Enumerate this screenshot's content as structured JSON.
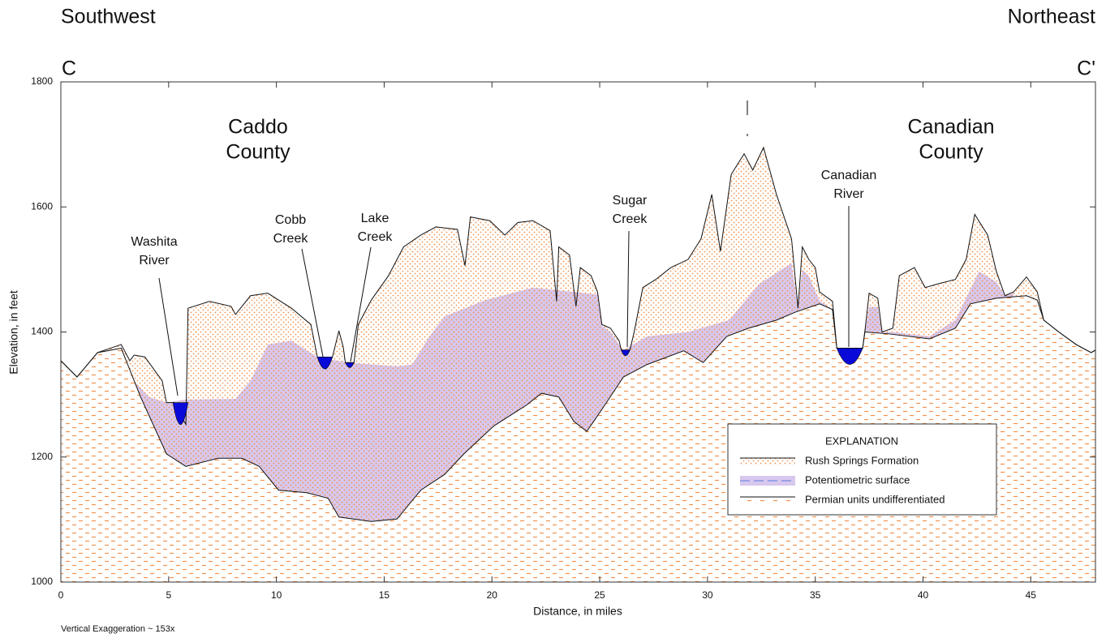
{
  "chart_data": {
    "type": "profile",
    "top_left": "Southwest",
    "top_right": "Northeast",
    "section_start": "C",
    "section_end": "C'",
    "xlabel": "Distance, in miles",
    "ylabel": "Elevation, in feet",
    "note": "Vertical Exaggeration ~ 153x",
    "xlim": [
      0,
      48
    ],
    "ylim": [
      1000,
      1800
    ],
    "xticks": [
      0,
      5,
      10,
      15,
      20,
      25,
      30,
      35,
      40,
      45
    ],
    "yticks": [
      1000,
      1200,
      1400,
      1600,
      1800
    ],
    "legend": "lower right",
    "legend_title": "EXPLANATION",
    "water_color": "#0a0ad8",
    "series": [
      {
        "name": "Rush Springs Formation",
        "color": "#f0924e",
        "x": [
          0,
          0.75,
          1.7,
          2.8,
          3.2,
          3.4,
          3.9,
          4.7,
          4.9,
          5.25,
          5.8,
          5.9,
          6.9,
          7.9,
          8.1,
          8.8,
          9.6,
          10.7,
          11.6,
          11.9,
          12.3,
          12.6,
          12.9,
          13.1,
          13.2,
          13.6,
          13.8,
          14.4,
          15.2,
          15.9,
          16.7,
          17.4,
          18.4,
          18.75,
          19.0,
          19.9,
          20.6,
          21.2,
          21.9,
          22.7,
          23.0,
          23.1,
          23.6,
          23.9,
          24.1,
          24.6,
          24.9,
          25.1,
          25.5,
          25.9,
          26.0,
          26.4,
          26.6,
          27.0,
          27.6,
          28.3,
          29.1,
          29.7,
          30.2,
          30.6,
          31.1,
          31.7,
          32.1,
          32.6,
          33.2,
          33.9,
          34.2,
          34.4,
          34.7,
          35.0,
          35.2,
          35.8,
          36.0,
          37.2,
          37.3,
          37.5,
          37.9,
          38.1,
          38.6,
          38.9,
          39.6,
          40.1,
          40.7,
          41.5,
          42.0,
          42.4,
          43.0,
          43.4,
          43.8,
          44.2,
          44.8,
          45.3,
          45.6,
          46.3,
          47.1,
          47.8,
          48
        ],
        "values": [
          1354,
          1328,
          1367,
          1380,
          1354,
          1363,
          1360,
          1322,
          1287,
          1287,
          1252,
          1438,
          1449,
          1441,
          1428,
          1458,
          1462,
          1438,
          1412,
          1360,
          1341,
          1360,
          1402,
          1376,
          1351,
          1351,
          1412,
          1451,
          1490,
          1536,
          1555,
          1568,
          1564,
          1506,
          1584,
          1578,
          1555,
          1575,
          1578,
          1562,
          1449,
          1536,
          1523,
          1441,
          1503,
          1490,
          1464,
          1412,
          1406,
          1386,
          1371,
          1371,
          1400,
          1471,
          1484,
          1503,
          1516,
          1549,
          1620,
          1529,
          1652,
          1685,
          1659,
          1695,
          1620,
          1549,
          1438,
          1536,
          1516,
          1503,
          1464,
          1449,
          1374,
          1374,
          1400,
          1462,
          1454,
          1400,
          1406,
          1490,
          1503,
          1471,
          1477,
          1484,
          1516,
          1588,
          1555,
          1497,
          1458,
          1464,
          1488,
          1464,
          1419,
          1400,
          1380,
          1367,
          1371
        ]
      },
      {
        "name": "Potentiometric surface",
        "color": "#d7c8ee",
        "x": [
          2.8,
          3.2,
          4.1,
          4.9,
          5.8,
          8.1,
          8.8,
          9.6,
          10.7,
          11.9,
          13.3,
          15.6,
          16.3,
          17.1,
          17.8,
          19.7,
          21.9,
          24.9,
          25.1,
          25.5,
          25.9,
          26.1,
          27.2,
          29.1,
          31.0,
          32.4,
          33.9,
          34.2,
          34.4,
          34.7,
          35.2,
          35.8,
          36.0,
          37.2,
          37.3,
          37.5,
          37.9,
          38.1,
          38.6,
          40.3,
          41.5,
          42.6,
          43.4,
          43.8,
          44.2
        ],
        "values": [
          1380,
          1328,
          1296,
          1287,
          1292,
          1293,
          1322,
          1380,
          1386,
          1360,
          1351,
          1345,
          1348,
          1393,
          1425,
          1451,
          1471,
          1460,
          1410,
          1400,
          1380,
          1371,
          1393,
          1400,
          1419,
          1477,
          1510,
          1438,
          1500,
          1490,
          1450,
          1436,
          1374,
          1374,
          1400,
          1440,
          1440,
          1400,
          1400,
          1393,
          1419,
          1497,
          1480,
          1458,
          1462
        ]
      },
      {
        "name": "Permian units undifferentiated",
        "color": "#f0924e",
        "x": [
          0,
          0.75,
          1.7,
          2.8,
          3.7,
          4.9,
          5.8,
          7.3,
          8.4,
          9.2,
          10.1,
          11.4,
          12.4,
          12.9,
          14.4,
          15.6,
          16.7,
          17.8,
          18.7,
          20.1,
          21.6,
          22.3,
          23.1,
          23.8,
          24.4,
          25.1,
          26.1,
          27.2,
          28.9,
          29.8,
          30.9,
          31.9,
          33.2,
          34.1,
          35.2,
          35.8,
          36.0,
          37.2,
          37.3,
          38.4,
          40.3,
          41.5,
          42.2,
          43.4,
          44.8,
          45.3,
          45.6,
          46.3,
          47.1,
          47.8,
          48
        ],
        "values": [
          1354,
          1328,
          1367,
          1374,
          1296,
          1205,
          1185,
          1198,
          1198,
          1185,
          1147,
          1143,
          1134,
          1104,
          1097,
          1101,
          1147,
          1172,
          1205,
          1250,
          1283,
          1302,
          1296,
          1257,
          1241,
          1276,
          1328,
          1348,
          1370,
          1351,
          1393,
          1406,
          1419,
          1432,
          1445,
          1436,
          1374,
          1374,
          1400,
          1397,
          1389,
          1406,
          1445,
          1454,
          1458,
          1451,
          1419,
          1400,
          1380,
          1367,
          1371
        ]
      }
    ],
    "counties": [
      [
        "Caddo",
        "County"
      ],
      [
        "Canadian",
        "County"
      ]
    ],
    "rivers": [
      {
        "lines": [
          "Washita",
          "River"
        ],
        "x": [
          5.2,
          5.9
        ],
        "level": 1287,
        "bottom": 1252
      },
      {
        "lines": [
          "Cobb",
          "Creek"
        ],
        "x": [
          11.9,
          12.6
        ],
        "level": 1360,
        "bottom": 1341
      },
      {
        "lines": [
          "Lake",
          "Creek"
        ],
        "x": [
          13.2,
          13.6
        ],
        "level": 1351,
        "bottom": 1343
      },
      {
        "lines": [
          "Sugar",
          "Creek"
        ],
        "x": [
          26.0,
          26.4
        ],
        "level": 1371,
        "bottom": 1362
      },
      {
        "lines": [
          "Canadian",
          "River"
        ],
        "x": [
          36.0,
          37.2
        ],
        "level": 1374,
        "bottom": 1348
      }
    ]
  }
}
